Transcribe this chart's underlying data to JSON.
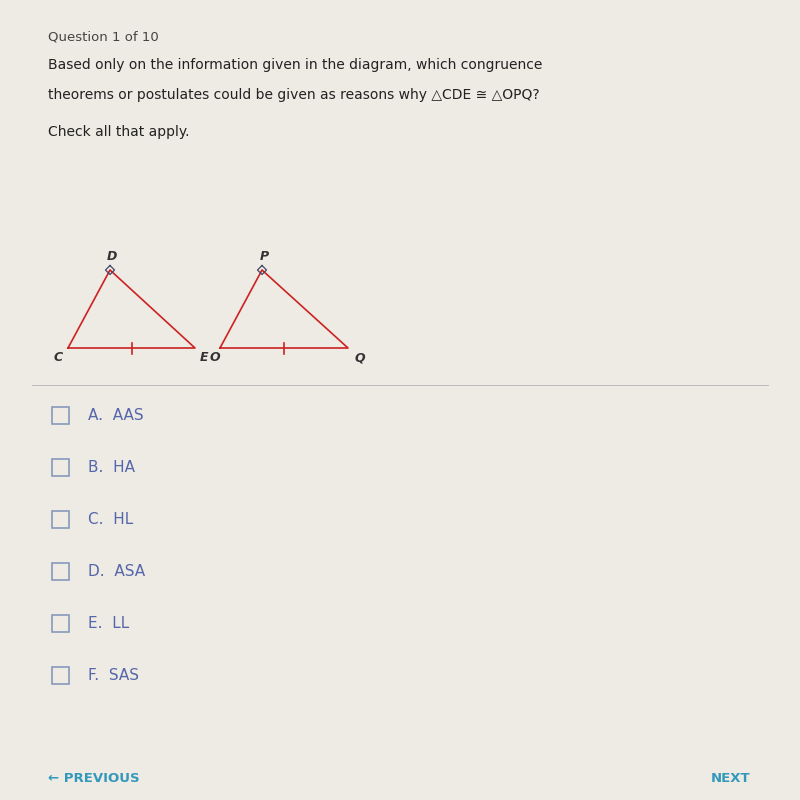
{
  "background_color": "#eeeae4",
  "question_header": "Question 1 of 10",
  "question_text_line1": "Based only on the information given in the diagram, which congruence",
  "question_text_line2": "theorems or postulates could be given as reasons why △CDE ≅ △OPQ?",
  "check_all": "Check all that apply.",
  "options": [
    "A.  AAS",
    "B.  HA",
    "C.  HL",
    "D.  ASA",
    "E.  LL",
    "F.  SAS"
  ],
  "header_color": "#444444",
  "question_color": "#222222",
  "check_color": "#222222",
  "option_color": "#5566aa",
  "checkbox_color": "#8899bb",
  "triangle_color": "#cc2222",
  "label_color": "#333333",
  "nav_color": "#3399bb",
  "previous_text": "← PREVIOUS",
  "next_text": "NEXT",
  "divider_color": "#bbbbbb",
  "tri1_C": [
    0.68,
    4.52
  ],
  "tri1_E": [
    1.95,
    4.52
  ],
  "tri1_D": [
    1.1,
    5.3
  ],
  "tri2_O": [
    2.2,
    4.52
  ],
  "tri2_Q": [
    3.48,
    4.52
  ],
  "tri2_P": [
    2.62,
    5.3
  ]
}
